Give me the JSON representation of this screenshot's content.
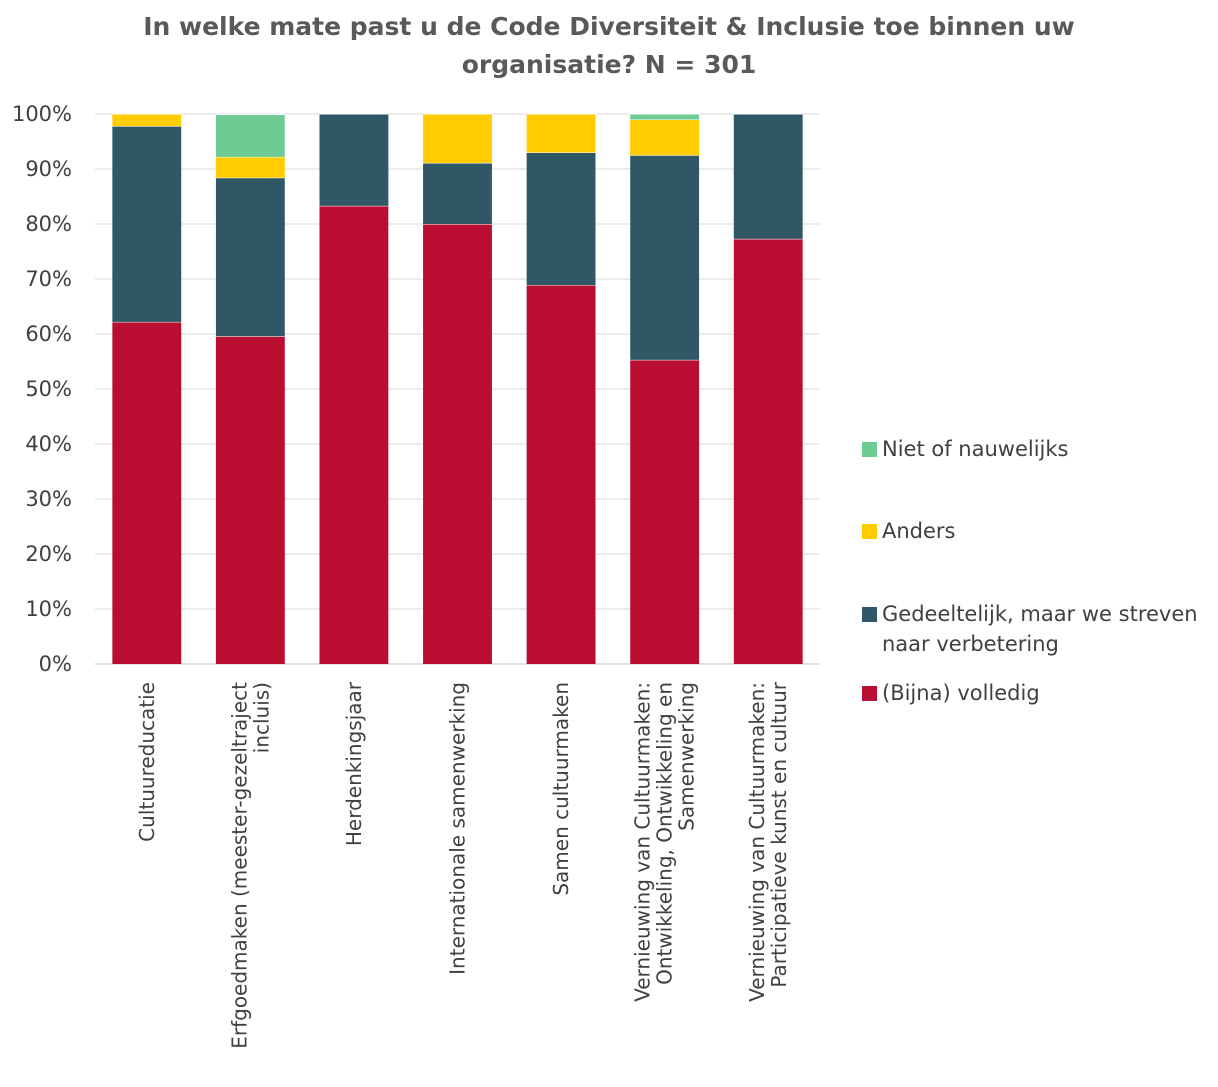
{
  "chart_data": {
    "type": "bar",
    "stacked": true,
    "title": "In welke mate past u de Code Diversiteit & Inclusie toe binnen uw organisatie? N = 301",
    "title_lines": [
      "In welke mate past u de Code Diversiteit & Inclusie toe binnen uw",
      "organisatie? N = 301"
    ],
    "ylim": [
      0,
      100
    ],
    "yticks": [
      "0%",
      "10%",
      "20%",
      "30%",
      "40%",
      "50%",
      "60%",
      "70%",
      "80%",
      "90%",
      "100%"
    ],
    "grid": true,
    "legend_position": "right",
    "categories": [
      [
        "Cultuureducatie"
      ],
      [
        "Erfgoedmaken (meester-gezeltraject",
        "incluis)"
      ],
      [
        "Herdenkingsjaar"
      ],
      [
        "Internationale samenwerking"
      ],
      [
        "Samen cultuurmaken"
      ],
      [
        "Vernieuwing van Cultuurmaken:",
        "Ontwikkeling, Ontwikkeling en",
        "Samenwerking"
      ],
      [
        "Vernieuwing van Cultuurmaken:",
        "Participatieve kunst en cultuur"
      ]
    ],
    "series": [
      {
        "name": "(Bijna) volledig",
        "color": "#B90E31",
        "values": [
          62.2,
          59.6,
          83.3,
          80.0,
          68.9,
          55.3,
          77.3
        ]
      },
      {
        "name": "Gedeeltelijk, maar we streven naar verbetering",
        "color": "#2F5766",
        "values": [
          35.6,
          28.8,
          16.7,
          11.1,
          24.1,
          37.2,
          22.7
        ]
      },
      {
        "name": "Anders",
        "color": "#FFCC00",
        "values": [
          2.2,
          3.8,
          0,
          8.9,
          7.0,
          6.5,
          0
        ]
      },
      {
        "name": "Niet of nauwelijks",
        "color": "#6FCB94",
        "values": [
          0,
          7.7,
          0,
          0,
          0,
          1.0,
          0
        ]
      }
    ],
    "legend": [
      {
        "label_lines": [
          "Niet of nauwelijks"
        ],
        "color": "#6FCB94"
      },
      {
        "label_lines": [
          "Anders"
        ],
        "color": "#FFCC00"
      },
      {
        "label_lines": [
          "Gedeeltelijk, maar we streven",
          "naar verbetering"
        ],
        "color": "#2F5766"
      },
      {
        "label_lines": [
          "(Bijna) volledig"
        ],
        "color": "#B90E31"
      }
    ]
  }
}
